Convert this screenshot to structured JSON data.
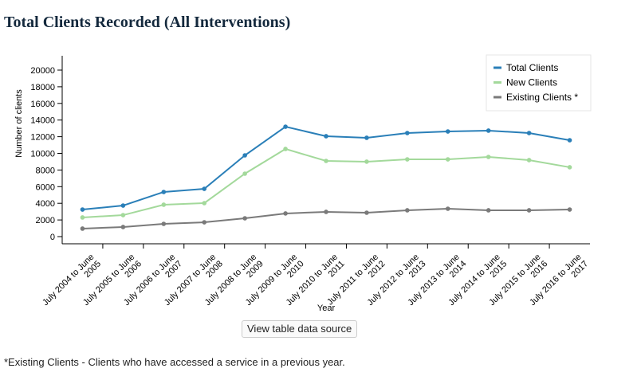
{
  "page": {
    "title": "Total Clients Recorded (All Interventions)",
    "button_label": "View table data source",
    "footnote": "*Existing Clients - Clients who have accessed a service in a previous year."
  },
  "chart_data": {
    "type": "line",
    "title": "Total Clients Recorded (All Interventions)",
    "xlabel": "Year",
    "ylabel": "Number of clients",
    "ylim": [
      0,
      20000
    ],
    "yticks": [
      0,
      2000,
      4000,
      6000,
      8000,
      10000,
      12000,
      14000,
      16000,
      18000,
      20000
    ],
    "legend_position": "top-right",
    "grid": false,
    "categories": [
      [
        "July 2004 to June",
        "2005"
      ],
      [
        "July 2005 to June",
        "2006"
      ],
      [
        "July 2006 to June",
        "2007"
      ],
      [
        "July 2007 to June",
        "2008"
      ],
      [
        "July 2008 to June",
        "2009"
      ],
      [
        "July 2009 to June",
        "2010"
      ],
      [
        "July 2010 to June",
        "2011"
      ],
      [
        "July 2011 to June",
        "2012"
      ],
      [
        "July 2012 to June",
        "2013"
      ],
      [
        "July 2013 to June",
        "2014"
      ],
      [
        "July 2014 to June",
        "2015"
      ],
      [
        "July 2015 to June",
        "2016"
      ],
      [
        "July 2016 to June",
        "2017"
      ]
    ],
    "series": [
      {
        "name": "Total Clients",
        "color": "#2a7fb8",
        "values": [
          3250,
          3730,
          5360,
          5740,
          9760,
          13200,
          12060,
          11870,
          12440,
          12630,
          12730,
          12440,
          11580
        ]
      },
      {
        "name": "New Clients",
        "color": "#a3d99b",
        "values": [
          2300,
          2580,
          3830,
          4020,
          7560,
          10530,
          9090,
          9000,
          9280,
          9280,
          9570,
          9190,
          8330
        ]
      },
      {
        "name": "Existing Clients *",
        "color": "#7a7a7a",
        "values": [
          960,
          1150,
          1530,
          1720,
          2200,
          2780,
          2970,
          2870,
          3160,
          3350,
          3160,
          3160,
          3250
        ]
      }
    ]
  }
}
